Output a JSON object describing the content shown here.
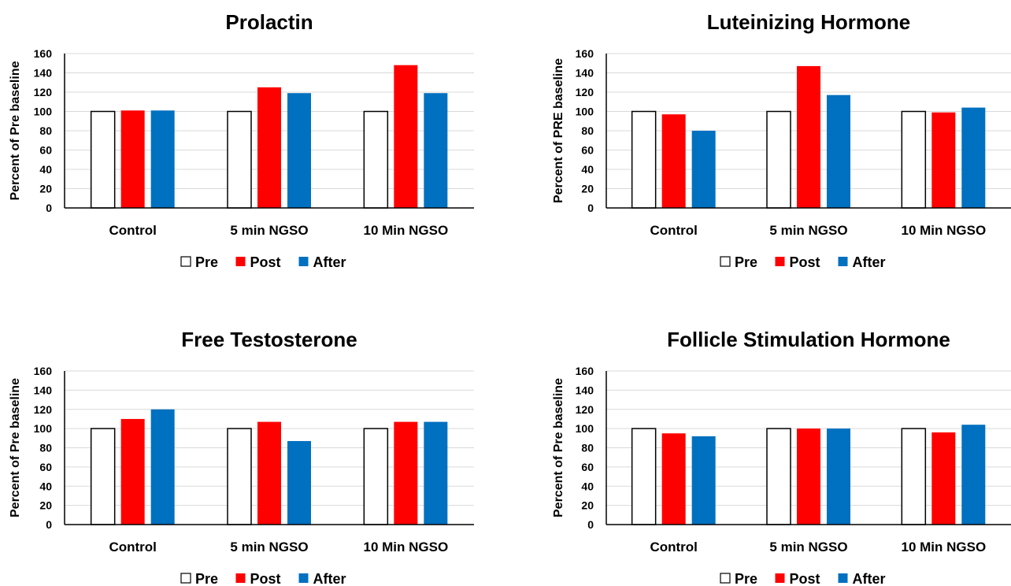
{
  "chart_data": [
    {
      "type": "bar",
      "title": "Prolactin",
      "ylabel": "Percent of Pre baseline",
      "categories": [
        "Control",
        "5 min NGSO",
        "10 Min NGSO"
      ],
      "ylim": [
        0,
        160
      ],
      "yticks": [
        0,
        20,
        40,
        60,
        80,
        100,
        120,
        140,
        160
      ],
      "grid": true,
      "legend": "bottom",
      "series": [
        {
          "name": "Pre",
          "color": "#FFFFFF",
          "values": [
            100,
            100,
            100
          ]
        },
        {
          "name": "Post",
          "color": "#FF0000",
          "values": [
            101,
            125,
            148
          ]
        },
        {
          "name": "After",
          "color": "#0070C0",
          "values": [
            101,
            119,
            119
          ]
        }
      ]
    },
    {
      "type": "bar",
      "title": "Luteinizing Hormone",
      "ylabel": "Percent of PRE baseline",
      "categories": [
        "Control",
        "5 min NGSO",
        "10 Min NGSO"
      ],
      "ylim": [
        0,
        160
      ],
      "yticks": [
        0,
        20,
        40,
        60,
        80,
        100,
        120,
        140,
        160
      ],
      "grid": true,
      "legend": "bottom",
      "series": [
        {
          "name": "Pre",
          "color": "#FFFFFF",
          "values": [
            100,
            100,
            100
          ]
        },
        {
          "name": "Post",
          "color": "#FF0000",
          "values": [
            97,
            147,
            99
          ]
        },
        {
          "name": "After",
          "color": "#0070C0",
          "values": [
            80,
            117,
            104
          ]
        }
      ]
    },
    {
      "type": "bar",
      "title": "Free Testosterone",
      "ylabel": "Percent of Pre baseline",
      "categories": [
        "Control",
        "5 min NGSO",
        "10 Min NGSO"
      ],
      "ylim": [
        0,
        160
      ],
      "yticks": [
        0,
        20,
        40,
        60,
        80,
        100,
        120,
        140,
        160
      ],
      "grid": true,
      "legend": "bottom",
      "series": [
        {
          "name": "Pre",
          "color": "#FFFFFF",
          "values": [
            100,
            100,
            100
          ]
        },
        {
          "name": "Post",
          "color": "#FF0000",
          "values": [
            110,
            107,
            107
          ]
        },
        {
          "name": "After",
          "color": "#0070C0",
          "values": [
            120,
            87,
            107
          ]
        }
      ]
    },
    {
      "type": "bar",
      "title": "Follicle Stimulation Hormone",
      "ylabel": "Percent of Pre baseline",
      "categories": [
        "Control",
        "5 min NGSO",
        "10 Min NGSO"
      ],
      "ylim": [
        0,
        160
      ],
      "yticks": [
        0,
        20,
        40,
        60,
        80,
        100,
        120,
        140,
        160
      ],
      "grid": true,
      "legend": "bottom",
      "series": [
        {
          "name": "Pre",
          "color": "#FFFFFF",
          "values": [
            100,
            100,
            100
          ]
        },
        {
          "name": "Post",
          "color": "#FF0000",
          "values": [
            95,
            100,
            96
          ]
        },
        {
          "name": "After",
          "color": "#0070C0",
          "values": [
            92,
            100,
            104
          ]
        }
      ]
    }
  ]
}
